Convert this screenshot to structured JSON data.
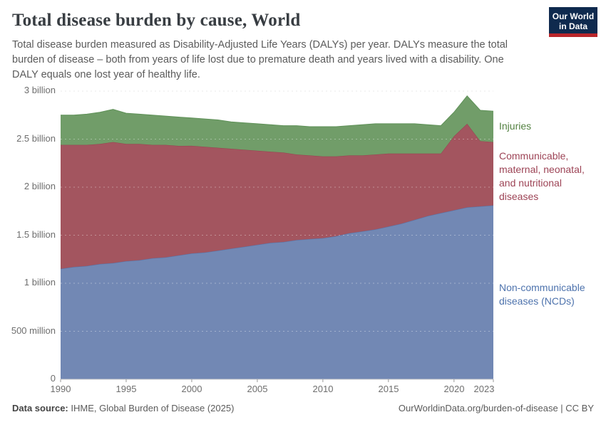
{
  "header": {
    "title": "Total disease burden by cause, World",
    "subtitle_lines": [
      "Total disease burden measured as Disability-Adjusted Life Years (DALYs) per year. DALYs measure the total",
      "burden of disease – both from years of life lost due to premature death and years lived with a disability. One",
      "DALY equals one lost year of healthy life."
    ],
    "logo_lines": [
      "Our World",
      "in Data"
    ],
    "logo_colors": {
      "background": "#0f2a4e",
      "bar": "#b9262b"
    }
  },
  "legend": {
    "injuries_label": "Injuries",
    "cmnn_lines": [
      "Communicable,",
      "maternal, neonatal,",
      "and nutritional",
      "diseases"
    ],
    "ncd_lines": [
      "Non-communicable",
      "diseases (NCDs)"
    ]
  },
  "footer": {
    "source_label": "Data source:",
    "source_value": " IHME, Global Burden of Disease (2025)",
    "credit": "OurWorldinData.org/burden-of-disease | CC BY"
  },
  "chart_data": {
    "type": "area",
    "stacked": true,
    "title": "Total disease burden by cause, World",
    "xlabel": "",
    "ylabel": "",
    "unit_scale": "billions of DALYs",
    "ylim_billions": [
      0,
      3
    ],
    "grid": "dashed",
    "legend_position": "right",
    "x": [
      1990,
      1991,
      1992,
      1993,
      1994,
      1995,
      1996,
      1997,
      1998,
      1999,
      2000,
      2001,
      2002,
      2003,
      2004,
      2005,
      2006,
      2007,
      2008,
      2009,
      2010,
      2011,
      2012,
      2013,
      2014,
      2015,
      2016,
      2017,
      2018,
      2019,
      2020,
      2021,
      2022,
      2023
    ],
    "x_ticks": [
      "1990",
      "1995",
      "2000",
      "2005",
      "2010",
      "2015",
      "2020",
      "2023"
    ],
    "x_tick_years": [
      1990,
      1995,
      2000,
      2005,
      2010,
      2015,
      2020,
      2023
    ],
    "y_ticks": [
      {
        "value": 0,
        "label": "0"
      },
      {
        "value": 0.5,
        "label": "500 million"
      },
      {
        "value": 1,
        "label": "1 billion"
      },
      {
        "value": 1.5,
        "label": "1.5 billion"
      },
      {
        "value": 2,
        "label": "2 billion"
      },
      {
        "value": 2.5,
        "label": "2.5 billion"
      },
      {
        "value": 3,
        "label": "3 billion"
      }
    ],
    "series": [
      {
        "name": "Non-communicable diseases (NCDs)",
        "color": "#7288b4",
        "edge_color": "#5472a8",
        "label_color": "#4e73ad",
        "values": [
          1.15,
          1.17,
          1.18,
          1.2,
          1.21,
          1.23,
          1.24,
          1.26,
          1.27,
          1.29,
          1.31,
          1.32,
          1.34,
          1.36,
          1.38,
          1.4,
          1.42,
          1.43,
          1.45,
          1.46,
          1.47,
          1.49,
          1.52,
          1.54,
          1.56,
          1.59,
          1.62,
          1.66,
          1.7,
          1.73,
          1.76,
          1.79,
          1.8,
          1.81
        ]
      },
      {
        "name": "Communicable, maternal, neonatal, and nutritional diseases",
        "color": "#a3555f",
        "edge_color": "#96434f",
        "label_color": "#9d4456",
        "values": [
          1.29,
          1.27,
          1.26,
          1.25,
          1.26,
          1.22,
          1.21,
          1.18,
          1.17,
          1.14,
          1.12,
          1.1,
          1.07,
          1.04,
          1.01,
          0.98,
          0.95,
          0.93,
          0.89,
          0.87,
          0.85,
          0.83,
          0.81,
          0.79,
          0.78,
          0.76,
          0.73,
          0.69,
          0.65,
          0.62,
          0.77,
          0.87,
          0.68,
          0.66
        ]
      },
      {
        "name": "Injuries",
        "color": "#719d69",
        "edge_color": "#5f9158",
        "label_color": "#538141",
        "values": [
          0.31,
          0.31,
          0.32,
          0.33,
          0.34,
          0.32,
          0.31,
          0.31,
          0.3,
          0.3,
          0.29,
          0.29,
          0.29,
          0.28,
          0.28,
          0.28,
          0.28,
          0.28,
          0.3,
          0.3,
          0.31,
          0.31,
          0.31,
          0.32,
          0.32,
          0.31,
          0.31,
          0.31,
          0.3,
          0.29,
          0.25,
          0.29,
          0.32,
          0.32
        ]
      }
    ]
  }
}
